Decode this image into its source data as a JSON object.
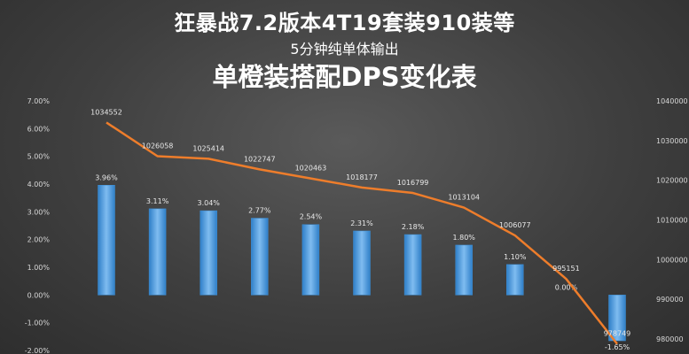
{
  "header": {
    "title_line1": "狂暴战7.2版本4T19套装910装等",
    "title_line2": "5分钟纯单体输出",
    "title_line3": "单橙装搭配DPS变化表"
  },
  "colors": {
    "bar": "#3d8fd6",
    "bar_light": "#7fbcf0",
    "line": "#ee7d2b"
  },
  "chart_data": {
    "type": "bar",
    "combo": "bar+line",
    "title": "单橙装搭配DPS变化表",
    "legend": "none",
    "grid": false,
    "left_axis": {
      "ylim": [
        -2,
        7
      ],
      "ticks": [
        "-2.00%",
        "-1.00%",
        "0.00%",
        "1.00%",
        "2.00%",
        "3.00%",
        "4.00%",
        "5.00%",
        "6.00%",
        "7.00%"
      ],
      "tick_values": [
        -2,
        -1,
        0,
        1,
        2,
        3,
        4,
        5,
        6,
        7
      ]
    },
    "right_axis": {
      "ylim": [
        980000,
        1040000
      ],
      "ticks": [
        "980000",
        "990000",
        "1000000",
        "1010000",
        "1020000",
        "1030000",
        "1040000"
      ],
      "tick_values": [
        980000,
        990000,
        1000000,
        1010000,
        1020000,
        1030000,
        1040000
      ]
    },
    "bar_series": {
      "values": [
        3.96,
        3.11,
        3.04,
        2.77,
        2.54,
        2.31,
        2.18,
        1.8,
        1.1,
        0.0,
        -1.65
      ],
      "labels": [
        "3.96%",
        "3.11%",
        "3.04%",
        "2.77%",
        "2.54%",
        "2.31%",
        "2.18%",
        "1.80%",
        "1.10%",
        "0.00%",
        "-1.65%"
      ]
    },
    "line_series": {
      "values": [
        1034552,
        1026058,
        1025414,
        1022747,
        1020463,
        1018177,
        1016799,
        1013104,
        1006077,
        995151,
        978749
      ],
      "labels": [
        "1034552",
        "1026058",
        "1025414",
        "1022747",
        "1020463",
        "1018177",
        "1016799",
        "1013104",
        "1006077",
        "995151",
        "978749"
      ]
    }
  }
}
